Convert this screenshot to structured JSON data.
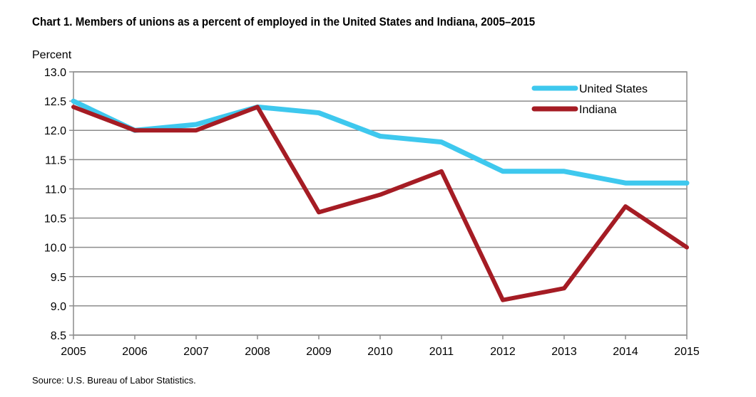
{
  "chart_data": {
    "type": "line",
    "title": "Chart 1. Members of unions as a percent of employed in the United States and Indiana, 2005–2015",
    "ylabel": "Percent",
    "xlabel": "",
    "x": [
      "2005",
      "2006",
      "2007",
      "2008",
      "2009",
      "2010",
      "2011",
      "2012",
      "2013",
      "2014",
      "2015"
    ],
    "ylim": [
      8.5,
      13.0
    ],
    "yticks": [
      "8.5",
      "9.0",
      "9.5",
      "10.0",
      "10.5",
      "11.0",
      "11.5",
      "12.0",
      "12.5",
      "13.0"
    ],
    "grid": true,
    "legend_position": "top-right",
    "series": [
      {
        "name": "United States",
        "color": "#3EC8EE",
        "values": [
          12.5,
          12.0,
          12.1,
          12.4,
          12.3,
          11.9,
          11.8,
          11.3,
          11.3,
          11.1,
          11.1
        ]
      },
      {
        "name": "Indiana",
        "color": "#A51C24",
        "values": [
          12.4,
          12.0,
          12.0,
          12.4,
          10.6,
          10.9,
          11.3,
          9.1,
          9.3,
          10.7,
          10.0
        ]
      }
    ],
    "source": "Source: U.S. Bureau of Labor Statistics."
  }
}
